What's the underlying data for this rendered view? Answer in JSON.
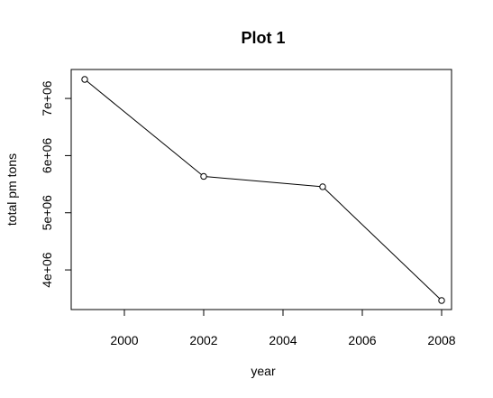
{
  "chart_data": {
    "type": "line",
    "title": "Plot 1",
    "xlabel": "year",
    "ylabel": "total pm tons",
    "x": [
      1999,
      2002,
      2005,
      2008
    ],
    "y": [
      7332967,
      5635780,
      5454703,
      3464206
    ],
    "xlim": [
      1999,
      2008
    ],
    "ylim": [
      3464206,
      7332967
    ],
    "x_ticks": [
      2000,
      2002,
      2004,
      2006,
      2008
    ],
    "x_tick_labels": [
      "2000",
      "2002",
      "2004",
      "2006",
      "2008"
    ],
    "y_ticks": [
      4000000,
      5000000,
      6000000,
      7000000
    ],
    "y_tick_labels": [
      "4e+06",
      "5e+06",
      "6e+06",
      "7e+06"
    ],
    "marker": "open-circle",
    "line_color": "#000000",
    "grid": false,
    "legend": "none"
  }
}
